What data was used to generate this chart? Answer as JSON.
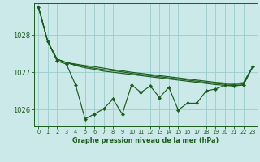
{
  "title": "Graphe pression niveau de la mer (hPa)",
  "background_color": "#cce9e9",
  "plot_bg_color": "#cce9e9",
  "grid_color": "#99cccc",
  "line_color": "#1a5c1a",
  "xlim": [
    -0.5,
    23.5
  ],
  "ylim": [
    1025.55,
    1028.85
  ],
  "yticks": [
    1026,
    1027,
    1028
  ],
  "xticks": [
    0,
    1,
    2,
    3,
    4,
    5,
    6,
    7,
    8,
    9,
    10,
    11,
    12,
    13,
    14,
    15,
    16,
    17,
    18,
    19,
    20,
    21,
    22,
    23
  ],
  "smooth1": [
    1028.75,
    1027.82,
    1027.35,
    1027.26,
    1027.22,
    1027.18,
    1027.15,
    1027.11,
    1027.07,
    1027.04,
    1027.0,
    1026.97,
    1026.94,
    1026.91,
    1026.88,
    1026.85,
    1026.82,
    1026.79,
    1026.76,
    1026.73,
    1026.71,
    1026.7,
    1026.72,
    1027.15
  ],
  "smooth2": [
    1028.75,
    1027.82,
    1027.35,
    1027.26,
    1027.2,
    1027.15,
    1027.11,
    1027.07,
    1027.04,
    1027.01,
    1026.97,
    1026.94,
    1026.91,
    1026.88,
    1026.85,
    1026.82,
    1026.79,
    1026.76,
    1026.73,
    1026.7,
    1026.68,
    1026.67,
    1026.69,
    1027.15
  ],
  "smooth3": [
    1028.75,
    1027.82,
    1027.35,
    1027.26,
    1027.18,
    1027.12,
    1027.08,
    1027.03,
    1027.0,
    1026.97,
    1026.94,
    1026.91,
    1026.88,
    1026.85,
    1026.82,
    1026.79,
    1026.76,
    1026.73,
    1026.7,
    1026.67,
    1026.65,
    1026.64,
    1026.66,
    1027.15
  ],
  "zigzag": [
    1028.75,
    1027.82,
    1027.3,
    1027.22,
    1026.65,
    1025.75,
    1025.88,
    1026.02,
    1026.28,
    1025.88,
    1026.66,
    1026.46,
    1026.63,
    1026.32,
    1026.6,
    1025.99,
    1026.17,
    1026.17,
    1026.5,
    1026.55,
    1026.65,
    1026.63,
    1026.66,
    1027.15
  ]
}
